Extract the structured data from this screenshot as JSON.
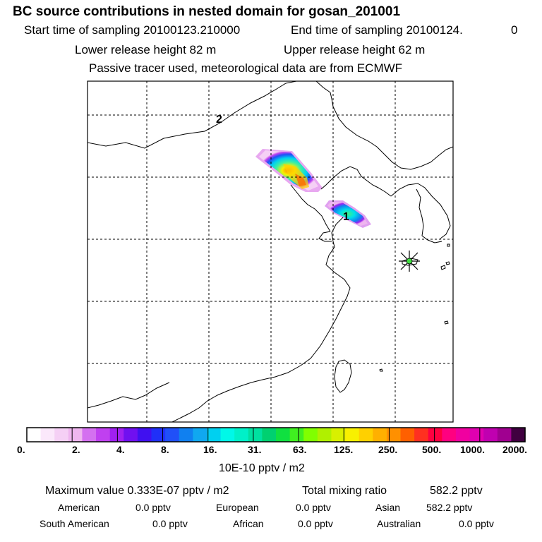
{
  "header": {
    "title": "BC  source contributions in nested domain for gosan_201001",
    "start_label": "Start time of sampling 20100123.210000",
    "end_label": "End time of sampling 20100124.",
    "end_value": "0",
    "lower_label": "Lower release height   82 m",
    "upper_label": "Upper release height   62 m",
    "info": "Passive tracer used, meteorological data are from ECMWF"
  },
  "map": {
    "marker_1": "1",
    "marker_2": "2",
    "receptor_icon": "star-icon"
  },
  "colorbar": {
    "ticks": [
      "0.",
      "2.",
      "4.",
      "8.",
      "16.",
      "31.",
      "63.",
      "125.",
      "250.",
      "500.",
      "1000.",
      "2000."
    ],
    "units": "10E-10 pptv / m2",
    "colors": [
      "#ffffff",
      "#fbe8fb",
      "#f5d0f5",
      "#efb6ef",
      "#d470f0",
      "#c040f0",
      "#a020f0",
      "#7010f0",
      "#4010f0",
      "#2030f8",
      "#2050f8",
      "#1080f0",
      "#10a8f0",
      "#00d0f0",
      "#00f8e8",
      "#00f0c8",
      "#00e0a0",
      "#00d070",
      "#10e040",
      "#40f020",
      "#80ff00",
      "#b0f000",
      "#d8f000",
      "#f8f000",
      "#ffd000",
      "#ffb000",
      "#ff9000",
      "#ff6000",
      "#ff3020",
      "#ff0040",
      "#ff0080",
      "#f000a0",
      "#e000b0",
      "#c000b0",
      "#a00090",
      "#400040"
    ]
  },
  "stats": {
    "max_label": "Maximum value  0.333E-07 pptv / m2",
    "total_label": "Total mixing ratio",
    "total_value": "582.2 pptv",
    "american_label": "American",
    "american_value": "0.0 pptv",
    "european_label": "European",
    "european_value": "0.0 pptv",
    "asian_label": "Asian",
    "asian_value": "582.2 pptv",
    "south_american_label": "South American",
    "south_american_value": "0.0 pptv",
    "african_label": "African",
    "african_value": "0.0 pptv",
    "australian_label": "Australian",
    "australian_value": "0.0 pptv"
  }
}
